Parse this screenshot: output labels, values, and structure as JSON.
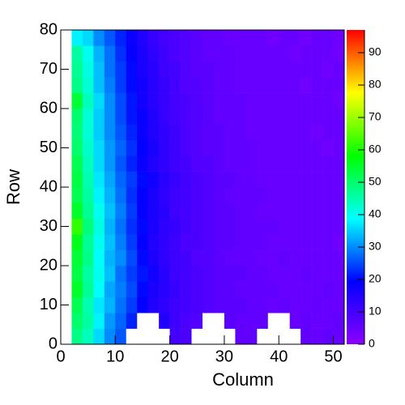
{
  "chart_data": {
    "type": "heatmap",
    "x_label": "Column",
    "y_label": "Row",
    "x_bins": [
      2,
      4,
      6,
      8,
      10,
      12,
      14,
      16,
      18,
      20,
      22,
      24,
      26,
      28,
      30,
      32,
      34,
      36,
      38,
      40,
      42,
      44,
      46,
      48,
      50,
      52
    ],
    "y_bins": [
      0,
      4,
      8,
      12,
      16,
      20,
      24,
      28,
      32,
      36,
      40,
      44,
      48,
      52,
      56,
      60,
      64,
      68,
      72,
      76,
      80
    ],
    "values": [
      [
        48,
        44,
        36,
        30,
        26,
        0,
        0,
        0,
        0,
        10,
        9,
        0,
        0,
        0,
        0,
        6,
        6,
        0,
        0,
        0,
        0,
        6,
        5,
        6,
        5
      ],
      [
        50,
        46,
        38,
        31,
        27,
        22,
        0,
        0,
        15,
        11,
        9,
        8,
        0,
        0,
        7,
        6,
        6,
        6,
        0,
        0,
        5,
        6,
        5,
        5,
        6
      ],
      [
        52,
        45,
        37,
        33,
        28,
        24,
        19,
        15,
        13,
        11,
        10,
        9,
        8,
        7,
        7,
        7,
        6,
        6,
        5,
        6,
        5,
        5,
        6,
        5,
        5
      ],
      [
        55,
        47,
        39,
        32,
        29,
        25,
        20,
        16,
        14,
        12,
        10,
        9,
        8,
        7,
        7,
        6,
        6,
        6,
        6,
        5,
        5,
        5,
        5,
        6,
        5
      ],
      [
        53,
        46,
        40,
        34,
        28,
        24,
        21,
        17,
        14,
        11,
        10,
        9,
        8,
        7,
        7,
        7,
        6,
        6,
        5,
        5,
        5,
        6,
        5,
        5,
        5
      ],
      [
        54,
        48,
        39,
        33,
        30,
        25,
        20,
        16,
        13,
        11,
        10,
        8,
        8,
        7,
        6,
        6,
        6,
        5,
        5,
        6,
        5,
        5,
        5,
        5,
        5
      ],
      [
        56,
        47,
        40,
        34,
        29,
        24,
        19,
        15,
        13,
        11,
        9,
        9,
        8,
        7,
        7,
        6,
        6,
        6,
        5,
        5,
        5,
        5,
        5,
        5,
        4
      ],
      [
        62,
        49,
        41,
        33,
        28,
        23,
        20,
        16,
        13,
        12,
        10,
        9,
        8,
        7,
        7,
        6,
        6,
        6,
        6,
        5,
        5,
        5,
        5,
        5,
        5
      ],
      [
        55,
        47,
        40,
        34,
        29,
        24,
        19,
        16,
        14,
        11,
        10,
        9,
        8,
        7,
        7,
        6,
        6,
        5,
        5,
        5,
        5,
        5,
        5,
        5,
        5
      ],
      [
        52,
        46,
        38,
        33,
        28,
        23,
        19,
        16,
        13,
        11,
        10,
        9,
        8,
        7,
        6,
        6,
        6,
        6,
        5,
        5,
        5,
        5,
        5,
        5,
        5
      ],
      [
        53,
        45,
        37,
        32,
        27,
        24,
        20,
        17,
        14,
        12,
        10,
        9,
        8,
        7,
        7,
        6,
        6,
        5,
        5,
        5,
        5,
        5,
        5,
        5,
        5
      ],
      [
        52,
        44,
        36,
        31,
        26,
        22,
        18,
        15,
        13,
        11,
        10,
        8,
        8,
        7,
        6,
        6,
        6,
        5,
        5,
        5,
        5,
        5,
        5,
        5,
        5
      ],
      [
        50,
        43,
        36,
        31,
        27,
        23,
        19,
        16,
        13,
        11,
        9,
        8,
        7,
        7,
        6,
        6,
        6,
        5,
        5,
        5,
        5,
        5,
        5,
        4,
        5
      ],
      [
        49,
        42,
        35,
        30,
        26,
        22,
        18,
        15,
        13,
        11,
        9,
        8,
        7,
        7,
        6,
        6,
        5,
        5,
        5,
        5,
        5,
        5,
        4,
        5,
        5
      ],
      [
        50,
        42,
        35,
        30,
        25,
        21,
        18,
        15,
        12,
        10,
        9,
        8,
        7,
        6,
        6,
        6,
        5,
        5,
        5,
        5,
        5,
        5,
        5,
        5,
        5
      ],
      [
        54,
        44,
        36,
        30,
        25,
        21,
        17,
        14,
        12,
        10,
        9,
        8,
        7,
        6,
        6,
        6,
        5,
        5,
        5,
        5,
        5,
        5,
        5,
        5,
        4
      ],
      [
        48,
        42,
        34,
        29,
        24,
        20,
        17,
        14,
        12,
        10,
        8,
        8,
        7,
        6,
        6,
        5,
        5,
        5,
        5,
        5,
        5,
        4,
        5,
        5,
        5
      ],
      [
        47,
        41,
        34,
        28,
        24,
        20,
        16,
        14,
        11,
        10,
        8,
        7,
        7,
        6,
        6,
        5,
        5,
        5,
        5,
        5,
        5,
        5,
        5,
        4,
        5
      ],
      [
        46,
        40,
        33,
        28,
        23,
        19,
        16,
        13,
        11,
        9,
        8,
        7,
        6,
        6,
        6,
        5,
        5,
        5,
        5,
        5,
        4,
        5,
        5,
        5,
        4
      ],
      [
        38,
        36,
        30,
        26,
        22,
        18,
        15,
        12,
        10,
        9,
        8,
        7,
        6,
        6,
        5,
        5,
        5,
        5,
        4,
        5,
        5,
        4,
        5,
        5,
        4
      ]
    ],
    "xlim": [
      0,
      52
    ],
    "ylim": [
      0,
      80
    ],
    "zlim": [
      0,
      97
    ],
    "xticks": [
      0,
      10,
      20,
      30,
      40,
      50
    ],
    "yticks": [
      0,
      10,
      20,
      30,
      40,
      50,
      60,
      70,
      80
    ],
    "zticks": [
      0,
      10,
      20,
      30,
      40,
      50,
      60,
      70,
      80,
      90
    ],
    "colormap": [
      "#8c00ff",
      "#0000ff",
      "#00ffff",
      "#00ff00",
      "#ffff00",
      "#ff0000"
    ],
    "empty_color": "#ffffff"
  }
}
